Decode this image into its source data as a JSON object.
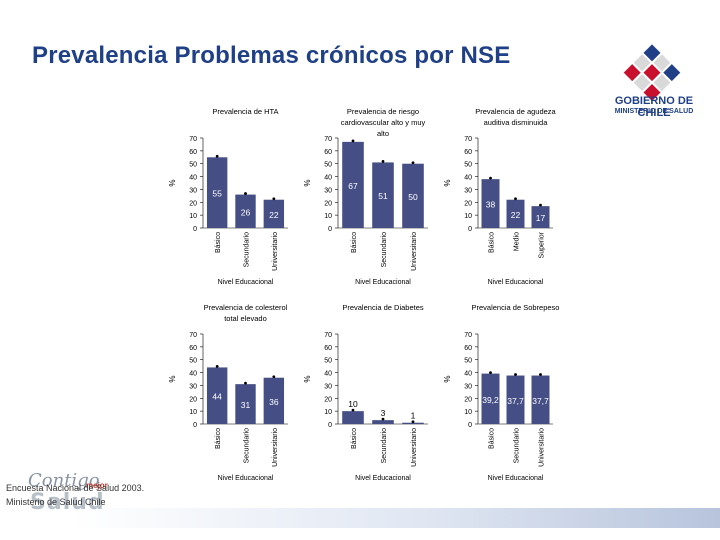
{
  "slide": {
    "title": "Prevalencia Problemas crónicos por NSE",
    "logo_line1": "GOBIERNO DE CHILE",
    "logo_line2": "MINISTERIO DE SALUD",
    "footer_line1": "Encuesta Nacional de Salud 2003.",
    "footer_line2": "Ministerio de Salud Chile",
    "brand_contigo": "Contigo",
    "brand_mejor": "mejor",
    "brand_salud": "Salud"
  },
  "colors": {
    "title": "#1f3f86",
    "bar": "#454f86",
    "grid_text": "#000000"
  },
  "chart_data": [
    {
      "type": "bar",
      "title": "Prevalencia de HTA",
      "categories": [
        "Básico",
        "Secundario",
        "Universitario"
      ],
      "values": [
        55,
        26,
        22
      ],
      "value_labels": [
        "55",
        "26",
        "22"
      ],
      "xlabel": "Nivel Educacional",
      "ylabel": "%",
      "ylim": [
        0,
        70
      ],
      "yticks": [
        0,
        10,
        20,
        30,
        40,
        50,
        60,
        70
      ]
    },
    {
      "type": "bar",
      "title": "Prevalencia de riesgo cardiovascular alto y muy alto",
      "categories": [
        "Básico",
        "Secundario",
        "Universitario"
      ],
      "values": [
        67,
        51,
        50
      ],
      "value_labels": [
        "67",
        "51",
        "50"
      ],
      "xlabel": "Nivel Educacional",
      "ylabel": "%",
      "ylim": [
        0,
        70
      ],
      "yticks": [
        0,
        10,
        20,
        30,
        40,
        50,
        60,
        70
      ]
    },
    {
      "type": "bar",
      "title": "Prevalencia de agudeza auditiva disminuida",
      "categories": [
        "Básico",
        "Medio",
        "Superior"
      ],
      "values": [
        38,
        22,
        17
      ],
      "value_labels": [
        "38",
        "22",
        "17"
      ],
      "xlabel": "Nivel Educacional",
      "ylabel": "%",
      "ylim": [
        0,
        70
      ],
      "yticks": [
        0,
        10,
        20,
        30,
        40,
        50,
        60,
        70
      ]
    },
    {
      "type": "bar",
      "title": "Prevalencia de colesterol total elevado",
      "categories": [
        "Básico",
        "Secundario",
        "Universitario"
      ],
      "values": [
        44,
        31,
        36
      ],
      "value_labels": [
        "44",
        "31",
        "36"
      ],
      "xlabel": "Nivel Educacional",
      "ylabel": "%",
      "ylim": [
        0,
        70
      ],
      "yticks": [
        0,
        10,
        20,
        30,
        40,
        50,
        60,
        70
      ]
    },
    {
      "type": "bar",
      "title": "Prevalencia de Diabetes",
      "categories": [
        "Básico",
        "Secundario",
        "Universitario"
      ],
      "values": [
        10,
        3,
        1
      ],
      "value_labels": [
        "10",
        "3",
        "1"
      ],
      "xlabel": "Nivel Educacional",
      "ylabel": "%",
      "ylim": [
        0,
        70
      ],
      "yticks": [
        0,
        10,
        20,
        30,
        40,
        50,
        60,
        70
      ]
    },
    {
      "type": "bar",
      "title": "Prevalencia de Sobrepeso",
      "categories": [
        "Básico",
        "Secundario",
        "Universitario"
      ],
      "values": [
        39.2,
        37.7,
        37.7
      ],
      "value_labels": [
        "39,2",
        "37,7",
        "37,7"
      ],
      "xlabel": "Nivel Educacional",
      "ylabel": "%",
      "ylim": [
        0,
        70
      ],
      "yticks": [
        0,
        10,
        20,
        30,
        40,
        50,
        60,
        70
      ]
    }
  ]
}
